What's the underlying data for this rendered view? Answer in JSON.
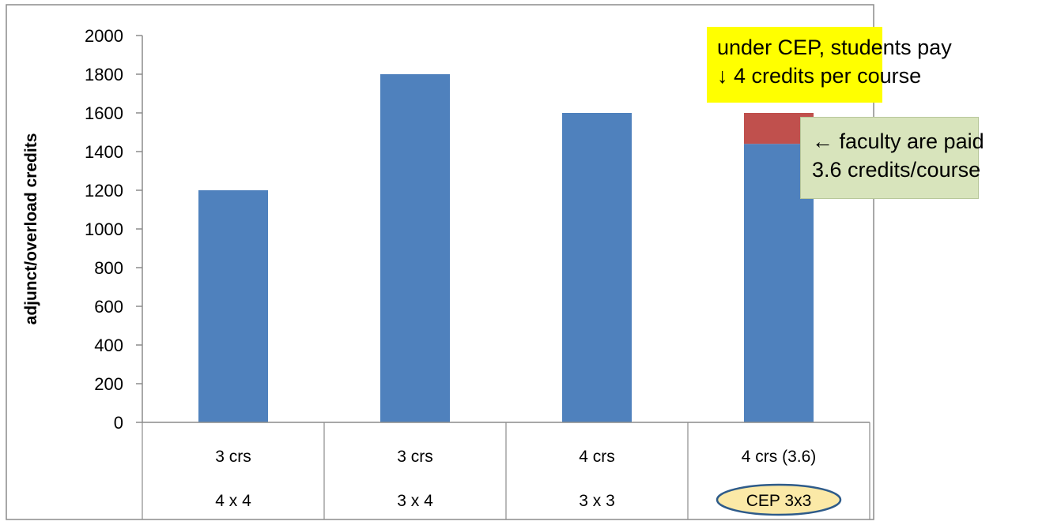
{
  "chart_data": {
    "type": "bar",
    "stacked": true,
    "ylabel": "adjunct/overload credits",
    "ylim": [
      0,
      2000
    ],
    "yticks": [
      0,
      200,
      400,
      600,
      800,
      1000,
      1200,
      1400,
      1600,
      1800,
      2000
    ],
    "categories": [
      {
        "line1": "3 crs",
        "line2": "4 x 4"
      },
      {
        "line1": "3 crs",
        "line2": "3 x 4"
      },
      {
        "line1": "4 crs",
        "line2": "3 x 3"
      },
      {
        "line1": "4 crs  (3.6)",
        "line2": "CEP 3x3"
      }
    ],
    "series": [
      {
        "values": [
          1200,
          1800,
          1600,
          1440
        ],
        "color": "#4f81bd"
      },
      {
        "values": [
          0,
          0,
          0,
          160
        ],
        "color": "#c0504d"
      }
    ],
    "highlight_category_index": 3,
    "highlight_color": "#fbe9a7",
    "highlight_border": "#2e5b8a",
    "grid": false
  },
  "annotations": {
    "students": {
      "line1": "under CEP, students pay",
      "line2": "↓ 4 credits per course",
      "bg": "#ffff00"
    },
    "faculty": {
      "line1": "← faculty are paid",
      "line2": "3.6 credits/course",
      "bg": "#d8e4bc"
    }
  }
}
